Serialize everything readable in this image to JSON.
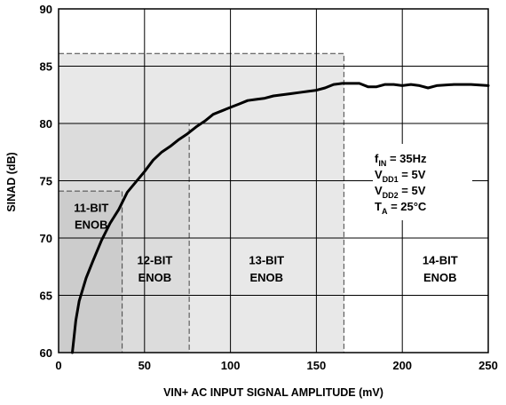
{
  "chart_data": {
    "type": "line",
    "xlabel": "VIN+ AC INPUT SIGNAL AMPLITUDE (mV)",
    "ylabel": "SINAD (dB)",
    "xlim": [
      0,
      250
    ],
    "ylim": [
      60,
      90
    ],
    "xticks": [
      "0",
      "50",
      "100",
      "150",
      "200",
      "250"
    ],
    "yticks": [
      "60",
      "65",
      "70",
      "75",
      "80",
      "85",
      "90"
    ],
    "grid": true,
    "series": [
      {
        "x": [
          8,
          10,
          12,
          16,
          20,
          25,
          30,
          35,
          40,
          45,
          50,
          55,
          60,
          65,
          70,
          75,
          80,
          85,
          90,
          95,
          100,
          105,
          110,
          115,
          120,
          125,
          130,
          135,
          140,
          145,
          150,
          155,
          160,
          165,
          170,
          175,
          180,
          185,
          190,
          195,
          200,
          205,
          210,
          215,
          220,
          230,
          240,
          250
        ],
        "y": [
          60,
          62.8,
          64.5,
          66.5,
          68,
          69.8,
          71.3,
          72.5,
          74,
          74.9,
          75.8,
          76.8,
          77.5,
          78.0,
          78.6,
          79.1,
          79.7,
          80.2,
          80.8,
          81.1,
          81.4,
          81.7,
          82.0,
          82.1,
          82.2,
          82.4,
          82.5,
          82.6,
          82.7,
          82.8,
          82.9,
          83.1,
          83.4,
          83.5,
          83.5,
          83.5,
          83.2,
          83.2,
          83.4,
          83.4,
          83.3,
          83.4,
          83.3,
          83.1,
          83.3,
          83.4,
          83.4,
          83.3
        ]
      }
    ],
    "regions": [
      {
        "id": "r14",
        "x_max": 250,
        "y_max": 90,
        "fill": "#ffffff",
        "dashed": false,
        "label": [
          "14-BIT",
          "ENOB"
        ],
        "label_x": 222,
        "label_y1": 67.7,
        "label_y2": 66.2
      },
      {
        "id": "r13",
        "x_max": 166,
        "y_max": 86.1,
        "fill": "#e8e8e8",
        "dashed": true,
        "label": [
          "13-BIT",
          "ENOB"
        ],
        "label_x": 121,
        "label_y1": 67.7,
        "label_y2": 66.2
      },
      {
        "id": "r12",
        "x_max": 76,
        "y_max": 80,
        "fill": "#dcdcdc",
        "dashed": true,
        "label": [
          "12-BIT",
          "ENOB"
        ],
        "label_x": 56,
        "label_y1": 67.7,
        "label_y2": 66.2
      },
      {
        "id": "r11",
        "x_max": 37,
        "y_max": 74.1,
        "fill": "#cccccc",
        "dashed": true,
        "label": [
          "11-BIT",
          "ENOB"
        ],
        "label_x": 19,
        "label_y1": 72.3,
        "label_y2": 70.8
      }
    ],
    "conditions": [
      {
        "main": "f",
        "sub": "IN",
        "rest": " = 35Hz"
      },
      {
        "main": "V",
        "sub": "DD1",
        "rest": " = 5V"
      },
      {
        "main": "V",
        "sub": "DD2",
        "rest": " = 5V"
      },
      {
        "main": "T",
        "sub": "A",
        "rest": " = 25°C"
      }
    ],
    "colors": {
      "curve": "#000000",
      "grid": "#000000",
      "dash": "#444444"
    }
  }
}
